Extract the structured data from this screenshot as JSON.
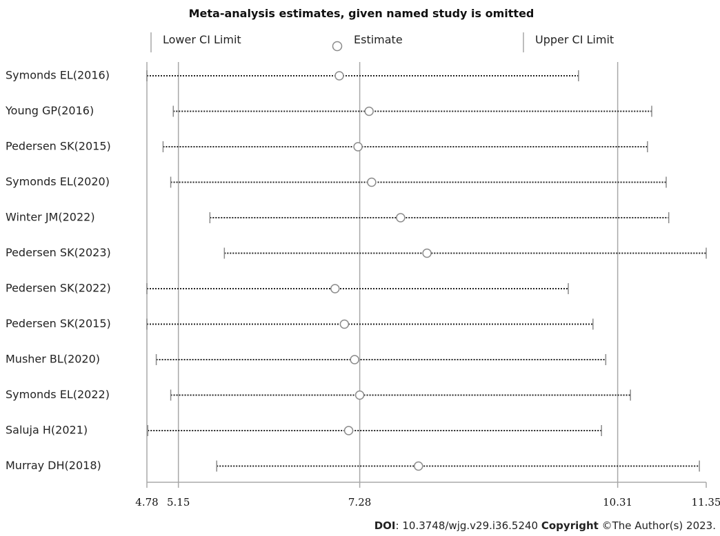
{
  "chart_data": {
    "type": "scatter",
    "title": "Meta-analysis estimates, given named study is omitted",
    "legend": {
      "placement": "top",
      "lower": "Lower CI Limit",
      "estimate": "Estimate",
      "upper": "Upper CI Limit"
    },
    "xlim": [
      4.78,
      11.35
    ],
    "x_ticks": [
      {
        "value": 4.78,
        "label": "4.78"
      },
      {
        "value": 5.15,
        "label": "5.15"
      },
      {
        "value": 7.28,
        "label": "7.28"
      },
      {
        "value": 10.31,
        "label": "10.31"
      },
      {
        "value": 11.35,
        "label": "11.35"
      }
    ],
    "reference_lines": [
      5.15,
      7.28,
      10.31
    ],
    "studies": [
      {
        "name": "Symonds EL(2016)",
        "lower": 4.78,
        "estimate": 7.04,
        "upper": 9.85
      },
      {
        "name": "Young GP(2016)",
        "lower": 5.09,
        "estimate": 7.39,
        "upper": 10.71
      },
      {
        "name": "Pedersen SK(2015)",
        "lower": 4.97,
        "estimate": 7.26,
        "upper": 10.66
      },
      {
        "name": "Symonds EL(2020)",
        "lower": 5.06,
        "estimate": 7.42,
        "upper": 10.88
      },
      {
        "name": "Winter JM(2022)",
        "lower": 5.52,
        "estimate": 7.76,
        "upper": 10.91
      },
      {
        "name": "Pedersen SK(2023)",
        "lower": 5.69,
        "estimate": 8.07,
        "upper": 11.35
      },
      {
        "name": "Pedersen SK(2022)",
        "lower": 4.78,
        "estimate": 6.99,
        "upper": 9.73
      },
      {
        "name": "Pedersen SK(2015)",
        "lower": 4.78,
        "estimate": 7.1,
        "upper": 10.02
      },
      {
        "name": "Musher BL(2020)",
        "lower": 4.89,
        "estimate": 7.22,
        "upper": 10.17
      },
      {
        "name": "Symonds EL(2022)",
        "lower": 5.06,
        "estimate": 7.28,
        "upper": 10.46
      },
      {
        "name": "Saluja H(2021)",
        "lower": 4.79,
        "estimate": 7.15,
        "upper": 10.12
      },
      {
        "name": "Murray DH(2018)",
        "lower": 5.6,
        "estimate": 7.97,
        "upper": 11.27
      }
    ]
  },
  "footer": {
    "doi_label": "DOI",
    "doi_value": ": 10.3748/wjg.v29.i36.5240 ",
    "copyright_label": "Copyright",
    "copyright_value": " ©The Author(s) 2023."
  }
}
